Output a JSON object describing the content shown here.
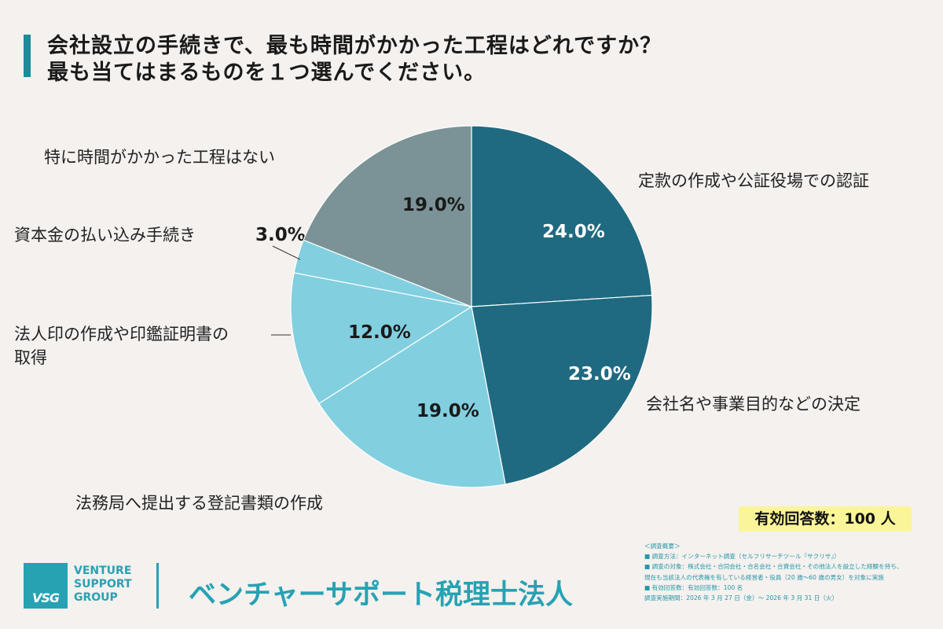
{
  "title": {
    "line1": "会社設立の手続きで、最も時間がかかった工程はどれですか？",
    "line2": "最も当てはまるものを１つ選んでください。"
  },
  "chart_data": {
    "type": "pie",
    "start_angle_deg": 0,
    "direction": "clockwise",
    "slices": [
      {
        "label": "定款の作成や公証役場での認証",
        "value": 24.0,
        "value_label": "24.0%",
        "color": "#1f6a80",
        "text_color": "#ffffff"
      },
      {
        "label": "会社名や事業目的などの決定",
        "value": 23.0,
        "value_label": "23.0%",
        "color": "#1f6a80",
        "text_color": "#ffffff"
      },
      {
        "label": "法務局へ提出する登記書類の作成",
        "value": 19.0,
        "value_label": "19.0%",
        "color": "#82cfe0",
        "text_color": "#1a1a1a"
      },
      {
        "label": "法人印の作成や印鑑証明書の取得",
        "label_lines": [
          "法人印の作成や印鑑証明書の",
          "取得"
        ],
        "value": 12.0,
        "value_label": "12.0%",
        "color": "#82cfe0",
        "text_color": "#1a1a1a"
      },
      {
        "label": "資本金の払い込み手続き",
        "value": 3.0,
        "value_label": "3.0%",
        "color": "#82cfe0",
        "text_color": "#1a1a1a"
      },
      {
        "label": "特に時間がかかった工程はない",
        "value": 19.0,
        "value_label": "19.0%",
        "color": "#7b9396",
        "text_color": "#1a1a1a"
      }
    ]
  },
  "badge": {
    "text": "有効回答数：100 人"
  },
  "notes": {
    "heading": "＜調査概要＞",
    "lines": [
      "■ 調査方法：インターネット調査（セルフリサーチツール『サクリサ』）",
      "■ 調査の対象：株式会社・合同会社・合名会社・合資会社・その他法人を設立した経験を持ち、",
      "現在も当該法人の代表権を有している経営者・役員（20 歳〜60 歳の男女）を対象に実施",
      "■ 有効回答数：有効回答数：100 名",
      "調査実施期間：2026 年 3 月 27 日（金）〜 2026 年 3 月 31 日（火）"
    ]
  },
  "logo": {
    "mark": "VSG",
    "words": [
      "VENTURE",
      "SUPPORT",
      "GROUP"
    ]
  },
  "firm": {
    "name": "ベンチャーサポート税理士法人"
  }
}
